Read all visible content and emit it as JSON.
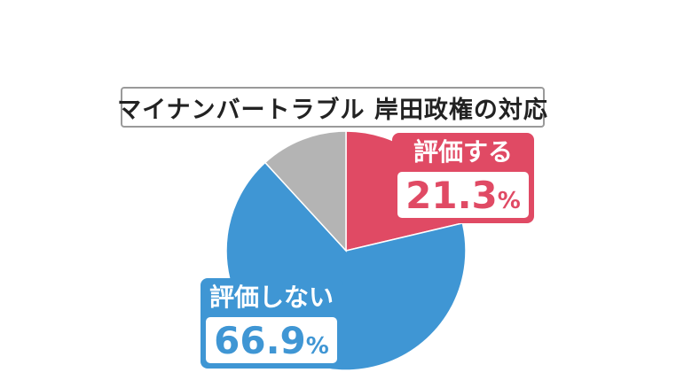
{
  "title": "マイナンバートラブル 岸田政権の対応",
  "chart_data": {
    "type": "pie",
    "title": "マイナンバートラブル 岸田政権の対応",
    "slices": [
      {
        "label": "評価する",
        "value": 21.3,
        "value_text": "21.3",
        "unit": "%",
        "color": "#e04a64"
      },
      {
        "label": "評価しない",
        "value": 66.9,
        "value_text": "66.9",
        "unit": "%",
        "color": "#3f96d4"
      },
      {
        "label": "",
        "value": 11.8,
        "color": "#b4b4b4"
      }
    ]
  }
}
